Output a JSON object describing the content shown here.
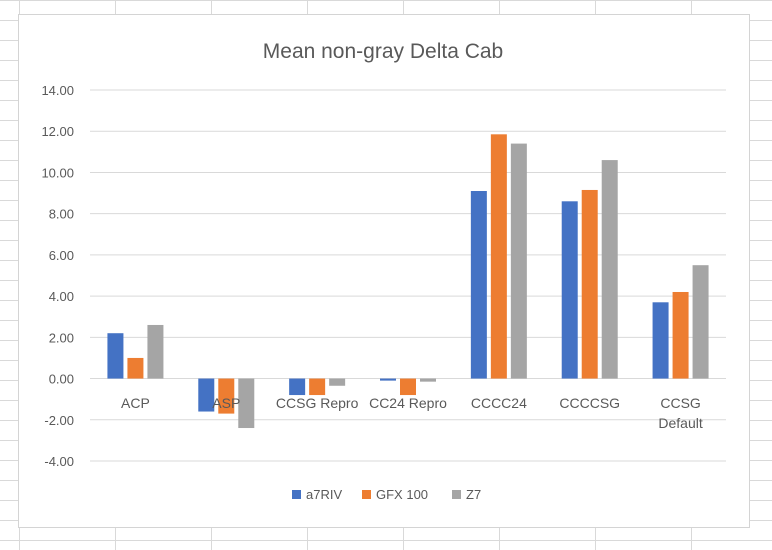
{
  "chart_data": {
    "type": "bar",
    "title": "Mean non-gray Delta Cab",
    "xlabel": "",
    "ylabel": "",
    "ylim": [
      -4,
      14
    ],
    "yticks": [
      "14.00",
      "12.00",
      "10.00",
      "8.00",
      "6.00",
      "4.00",
      "2.00",
      "0.00",
      "-2.00",
      "-4.00"
    ],
    "ytick_values": [
      14,
      12,
      10,
      8,
      6,
      4,
      2,
      0,
      -2,
      -4
    ],
    "categories": [
      "ACP",
      "ASP",
      "CCSG Repro",
      "CC24 Repro",
      "CCCC24",
      "CCCCSG",
      "CCSG Default"
    ],
    "category_lines": [
      [
        "ACP"
      ],
      [
        "ASP"
      ],
      [
        "CCSG Repro"
      ],
      [
        "CC24 Repro"
      ],
      [
        "CCCC24"
      ],
      [
        "CCCCSG"
      ],
      [
        "CCSG",
        "Default"
      ]
    ],
    "series": [
      {
        "name": "a7RIV",
        "color": "#4472c4",
        "values": [
          2.2,
          -1.6,
          -0.8,
          -0.1,
          9.1,
          8.6,
          3.7
        ]
      },
      {
        "name": "GFX 100",
        "color": "#ed7d31",
        "values": [
          1.0,
          -1.7,
          -0.8,
          -0.8,
          11.85,
          9.15,
          4.2
        ]
      },
      {
        "name": "Z7",
        "color": "#a5a5a5",
        "values": [
          2.6,
          -2.4,
          -0.35,
          -0.15,
          11.4,
          10.6,
          5.5
        ]
      }
    ],
    "grid": true,
    "legend": "bottom-center"
  }
}
